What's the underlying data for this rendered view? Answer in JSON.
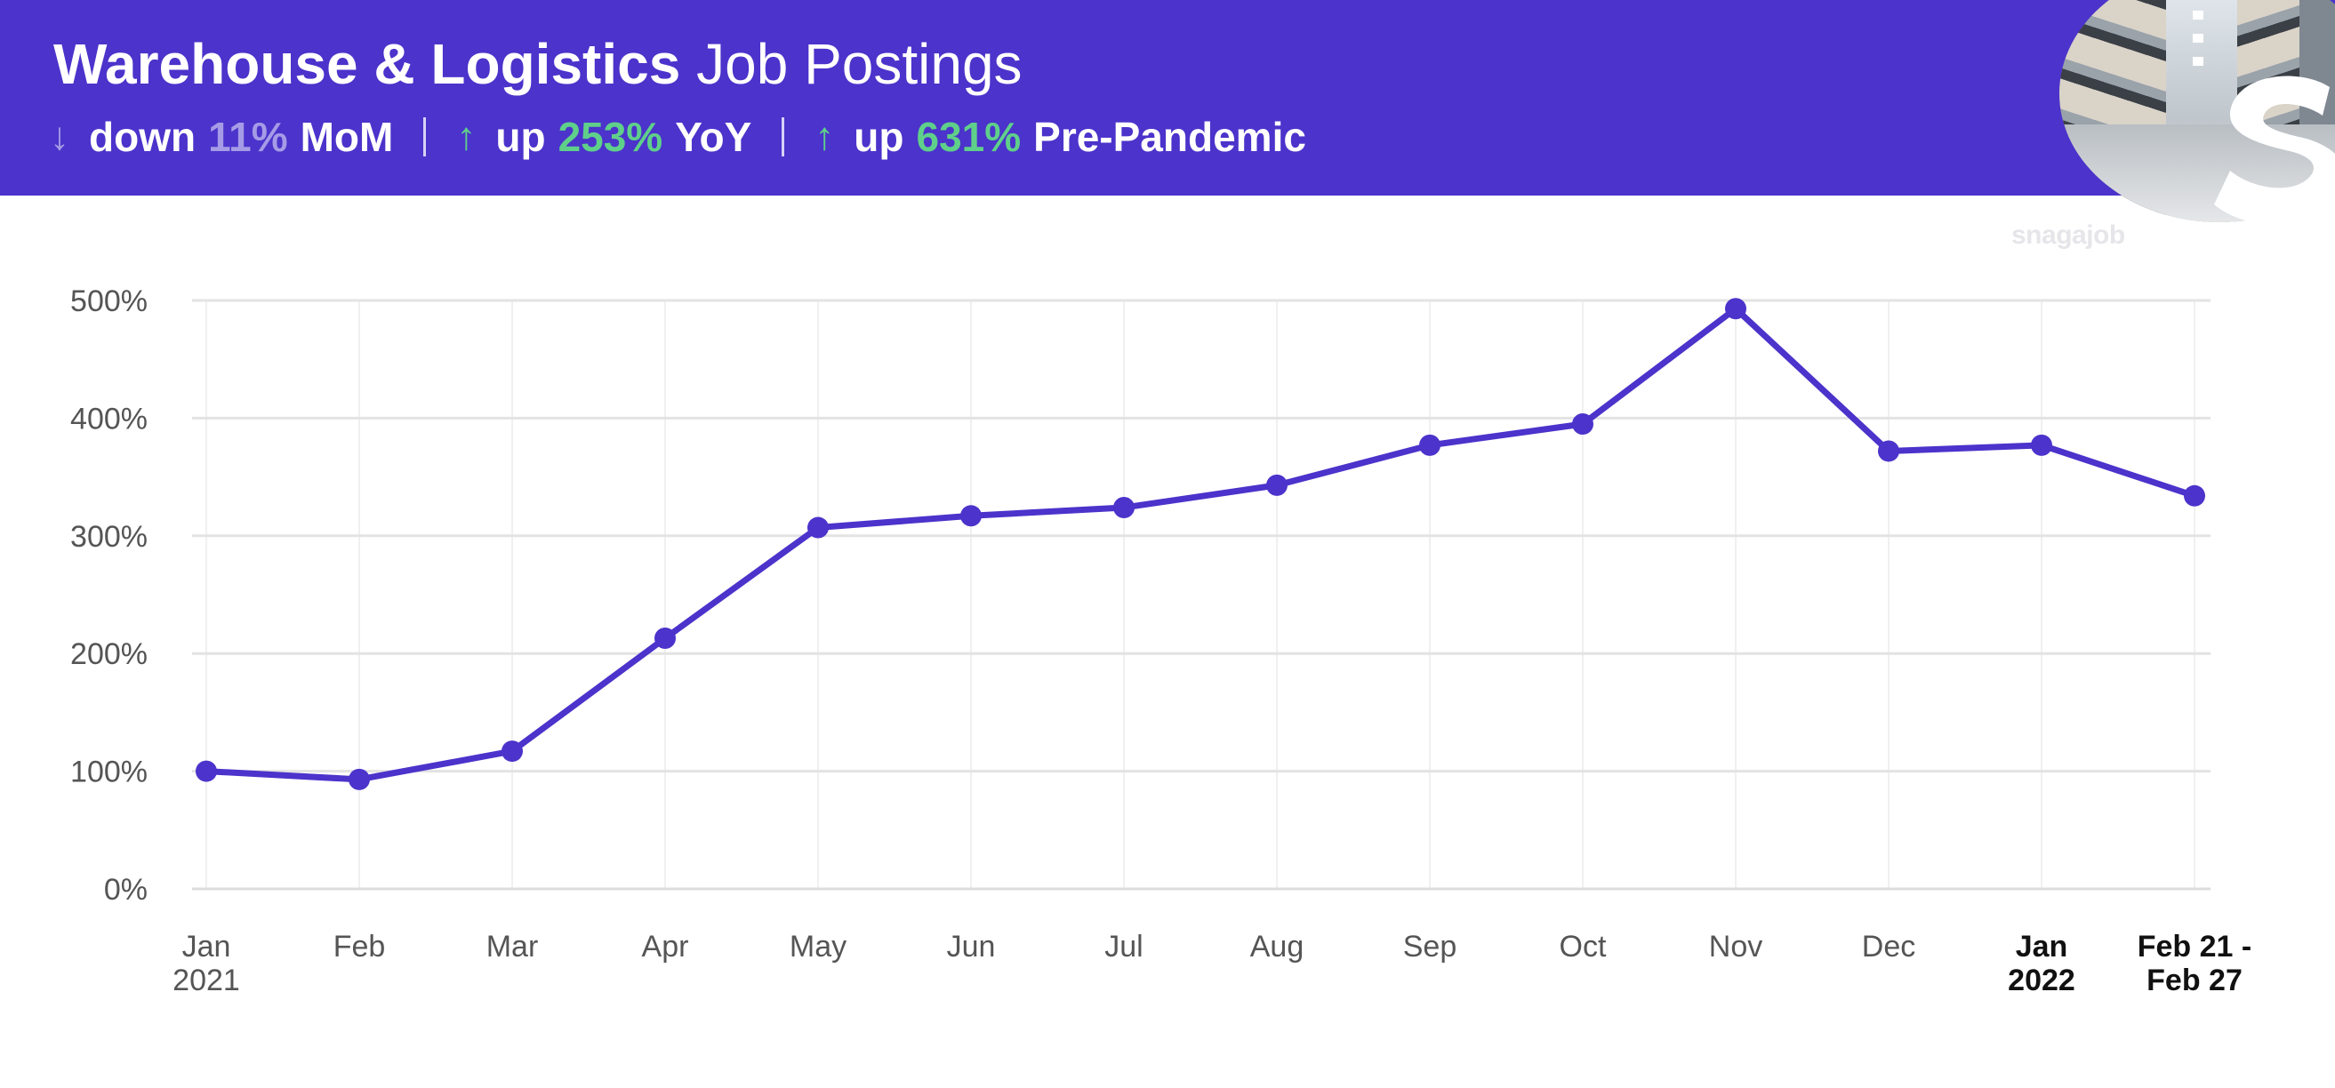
{
  "header": {
    "title_bold": "Warehouse & Logistics",
    "title_light": "Job Postings",
    "stats": [
      {
        "direction": "down",
        "arrow": "↓",
        "word": "down",
        "value": "11%",
        "period": "MoM"
      },
      {
        "direction": "up",
        "arrow": "↑",
        "word": "up",
        "value": "253%",
        "period": "YoY"
      },
      {
        "direction": "up",
        "arrow": "↑",
        "word": "up",
        "value": "631%",
        "period": "Pre-Pandemic"
      }
    ],
    "brand_text": "snagajob"
  },
  "colors": {
    "brand_purple": "#4b33cb",
    "line": "#4b33cb",
    "up": "#5fd08a",
    "down": "#a69be6",
    "grid": "#e3e3e3"
  },
  "chart_data": {
    "type": "line",
    "ylim": [
      0,
      500
    ],
    "yticks": [
      0,
      100,
      200,
      300,
      400,
      500
    ],
    "ytick_labels": [
      "0%",
      "100%",
      "200%",
      "300%",
      "400%",
      "500%"
    ],
    "categories": [
      [
        "Jan",
        "2021"
      ],
      [
        "Feb"
      ],
      [
        "Mar"
      ],
      [
        "Apr"
      ],
      [
        "May"
      ],
      [
        "Jun"
      ],
      [
        "Jul"
      ],
      [
        "Aug"
      ],
      [
        "Sep"
      ],
      [
        "Oct"
      ],
      [
        "Nov"
      ],
      [
        "Dec"
      ],
      [
        "Jan",
        "2022"
      ],
      [
        "Feb 21 -",
        "Feb 27"
      ]
    ],
    "emphasized_categories": [
      12,
      13
    ],
    "grid": true,
    "series": [
      {
        "values": [
          100,
          93,
          117,
          213,
          307,
          317,
          324,
          343,
          377,
          395,
          493,
          372,
          377,
          334
        ]
      }
    ]
  }
}
